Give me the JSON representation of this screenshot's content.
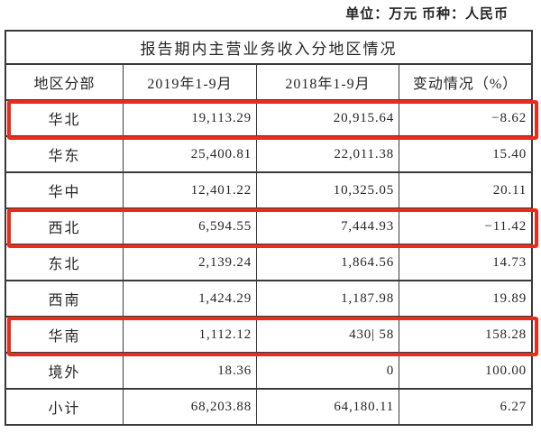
{
  "unit_line": "单位：万元  币种：人民币",
  "table": {
    "title": "报告期内主营业务收入分地区情况",
    "columns": [
      "地区分部",
      "2019年1-9月",
      "2018年1-9月",
      "变动情况（%）"
    ],
    "rows": [
      {
        "region": "华北",
        "y2019": "19,113.29",
        "y2018": "20,915.64",
        "change": "−8.62",
        "highlighted": true
      },
      {
        "region": "华东",
        "y2019": "25,400.81",
        "y2018": "22,011.38",
        "change": "15.40",
        "highlighted": false
      },
      {
        "region": "华中",
        "y2019": "12,401.22",
        "y2018": "10,325.05",
        "change": "20.11",
        "highlighted": false
      },
      {
        "region": "西北",
        "y2019": "6,594.55",
        "y2018": "7,444.93",
        "change": "−11.42",
        "highlighted": true
      },
      {
        "region": "东北",
        "y2019": "2,139.24",
        "y2018": "1,864.56",
        "change": "14.73",
        "highlighted": false
      },
      {
        "region": "西南",
        "y2019": "1,424.29",
        "y2018": "1,187.98",
        "change": "19.89",
        "highlighted": false
      },
      {
        "region": "华南",
        "y2019": "1,112.12",
        "y2018": "430| 58",
        "change": "158.28",
        "highlighted": true
      },
      {
        "region": "境外",
        "y2019": "18.36",
        "y2018": "0",
        "change": "100.00",
        "highlighted": false
      },
      {
        "region": "小计",
        "y2019": "68,203.88",
        "y2018": "64,180.11",
        "change": "6.27",
        "highlighted": false
      }
    ]
  },
  "colors": {
    "highlight_red": "#ee2a1c",
    "border": "#3a3a3a",
    "text": "#262626"
  }
}
